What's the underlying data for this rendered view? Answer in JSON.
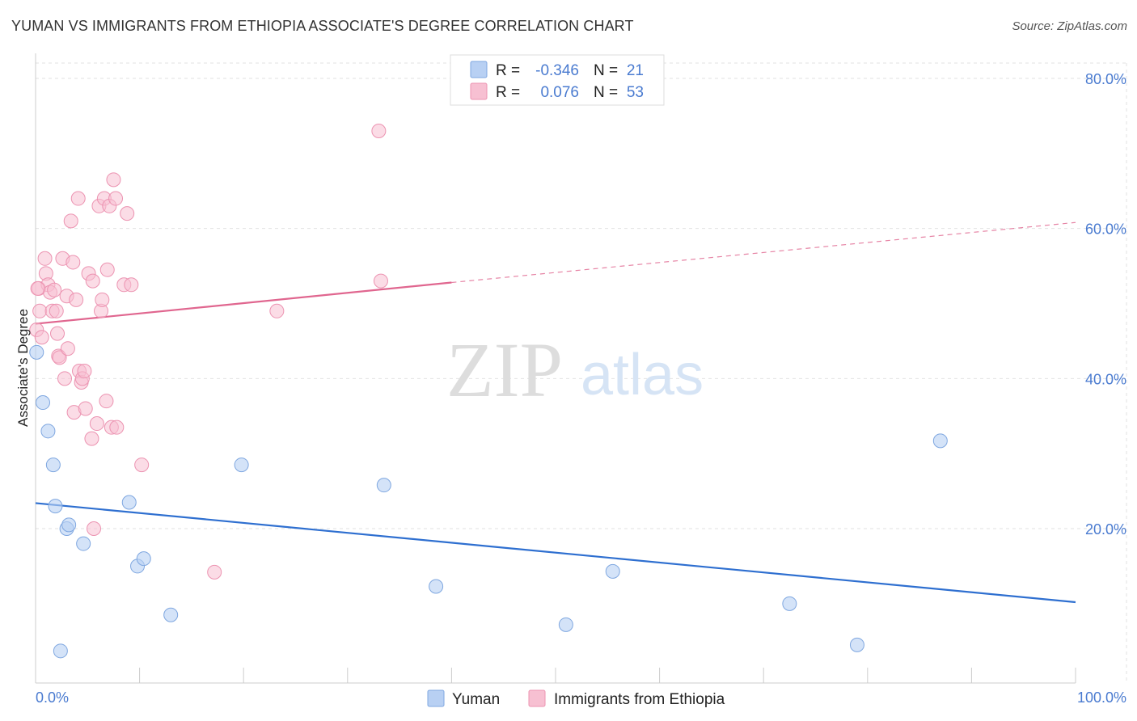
{
  "title": "YUMAN VS IMMIGRANTS FROM ETHIOPIA ASSOCIATE'S DEGREE CORRELATION CHART",
  "source": "Source: ZipAtlas.com",
  "watermark": {
    "part1": "ZIP",
    "part2": "atlas"
  },
  "colors": {
    "yuman_fill": "#b8d0f3",
    "yuman_stroke": "#7fa7e0",
    "yuman_line": "#2e6fd0",
    "eth_fill": "#f7c0d2",
    "eth_stroke": "#ec93b1",
    "eth_line": "#e0668f",
    "accent_text": "#4a7bd0",
    "grid": "#e2e2e2"
  },
  "stats_legend": {
    "rows": [
      {
        "r_label": "R =",
        "r_value": "-0.346",
        "n_label": "N =",
        "n_value": "21"
      },
      {
        "r_label": "R =",
        "r_value": "0.076",
        "n_label": "N =",
        "n_value": "53"
      }
    ]
  },
  "chart_data": {
    "type": "scatter",
    "title": "YUMAN VS IMMIGRANTS FROM ETHIOPIA ASSOCIATE'S DEGREE CORRELATION CHART",
    "xlabel": "",
    "ylabel": "Associate's Degree",
    "xlim": [
      0,
      100
    ],
    "ylim": [
      0,
      84
    ],
    "x_tick_labels": [
      "0.0%",
      "100.0%"
    ],
    "y_ticks": [
      20,
      40,
      60,
      80
    ],
    "y_tick_labels": [
      "20.0%",
      "40.0%",
      "60.0%",
      "80.0%"
    ],
    "grid": true,
    "legend_position": "bottom-center",
    "series": [
      {
        "name": "Yuman",
        "color": "#b8d0f3",
        "points": [
          [
            0.1,
            43.5
          ],
          [
            0.7,
            36.8
          ],
          [
            1.2,
            33.0
          ],
          [
            1.7,
            28.5
          ],
          [
            1.9,
            23.0
          ],
          [
            3.0,
            20.0
          ],
          [
            3.2,
            20.5
          ],
          [
            4.6,
            18.0
          ],
          [
            9.0,
            23.5
          ],
          [
            9.8,
            15.0
          ],
          [
            10.4,
            16.0
          ],
          [
            13.0,
            8.5
          ],
          [
            19.8,
            28.5
          ],
          [
            33.5,
            25.8
          ],
          [
            38.5,
            12.3
          ],
          [
            51.0,
            7.2
          ],
          [
            55.5,
            14.3
          ],
          [
            72.5,
            10.0
          ],
          [
            79.0,
            4.5
          ],
          [
            87.0,
            31.7
          ],
          [
            2.4,
            3.7
          ]
        ],
        "trend": {
          "x": [
            0,
            100
          ],
          "y": [
            23.4,
            10.2
          ]
        }
      },
      {
        "name": "Immigrants from Ethiopia",
        "color": "#f7c0d2",
        "points": [
          [
            0.1,
            46.5
          ],
          [
            0.3,
            52.0
          ],
          [
            0.4,
            49.0
          ],
          [
            0.6,
            45.5
          ],
          [
            0.9,
            56.0
          ],
          [
            1.0,
            54.0
          ],
          [
            1.2,
            52.5
          ],
          [
            1.4,
            51.5
          ],
          [
            1.6,
            49.0
          ],
          [
            1.8,
            51.8
          ],
          [
            2.0,
            49.0
          ],
          [
            2.1,
            46.0
          ],
          [
            2.2,
            43.0
          ],
          [
            2.3,
            42.8
          ],
          [
            2.6,
            56.0
          ],
          [
            2.8,
            40.0
          ],
          [
            3.0,
            51.0
          ],
          [
            3.1,
            44.0
          ],
          [
            3.4,
            61.0
          ],
          [
            3.6,
            55.5
          ],
          [
            3.7,
            35.5
          ],
          [
            3.9,
            50.5
          ],
          [
            4.1,
            64.0
          ],
          [
            4.2,
            41.0
          ],
          [
            4.4,
            39.5
          ],
          [
            4.5,
            40.0
          ],
          [
            4.7,
            41.0
          ],
          [
            4.8,
            36.0
          ],
          [
            5.1,
            54.0
          ],
          [
            5.4,
            32.0
          ],
          [
            5.5,
            53.0
          ],
          [
            5.6,
            20.0
          ],
          [
            5.9,
            34.0
          ],
          [
            6.1,
            63.0
          ],
          [
            6.3,
            49.0
          ],
          [
            6.4,
            50.5
          ],
          [
            6.6,
            64.0
          ],
          [
            6.8,
            37.0
          ],
          [
            6.9,
            54.5
          ],
          [
            7.1,
            63.0
          ],
          [
            7.3,
            33.5
          ],
          [
            7.5,
            66.5
          ],
          [
            7.7,
            64.0
          ],
          [
            7.8,
            33.5
          ],
          [
            8.5,
            52.5
          ],
          [
            8.8,
            62.0
          ],
          [
            9.2,
            52.5
          ],
          [
            10.2,
            28.5
          ],
          [
            17.2,
            14.2
          ],
          [
            23.2,
            49.0
          ],
          [
            33.0,
            73.0
          ],
          [
            33.2,
            53.0
          ],
          [
            0.2,
            52.0
          ]
        ],
        "trend": {
          "x": [
            0,
            40
          ],
          "y": [
            47.3,
            52.8
          ]
        },
        "trend_extension": {
          "x": [
            40,
            100
          ],
          "y": [
            52.8,
            60.8
          ]
        }
      }
    ]
  },
  "legend": {
    "items": [
      {
        "label": "Yuman"
      },
      {
        "label": "Immigrants from Ethiopia"
      }
    ]
  }
}
